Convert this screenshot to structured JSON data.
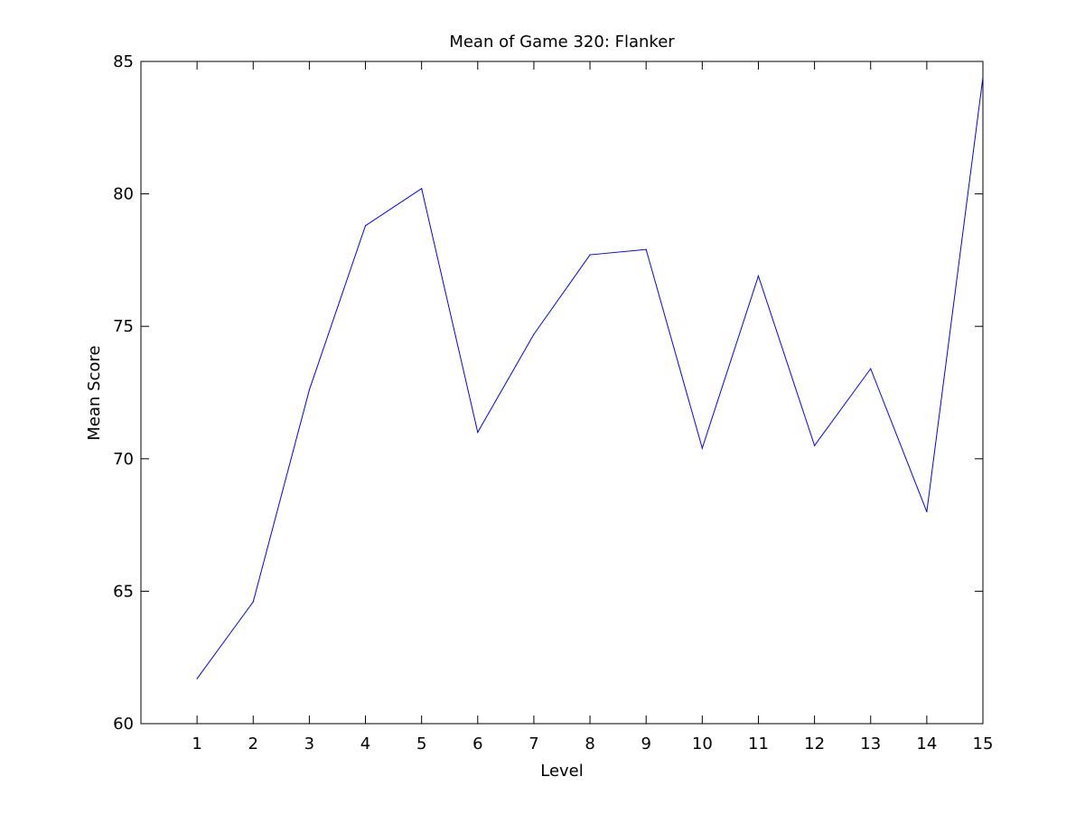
{
  "chart_data": {
    "type": "line",
    "title": "Mean of Game 320: Flanker",
    "xlabel": "Level",
    "ylabel": "Mean Score",
    "xlim": [
      0,
      15
    ],
    "ylim": [
      60,
      85
    ],
    "x_ticks": [
      1,
      2,
      3,
      4,
      5,
      6,
      7,
      8,
      9,
      10,
      11,
      12,
      13,
      14,
      15
    ],
    "y_ticks": [
      60,
      65,
      70,
      75,
      80,
      85
    ],
    "grid": false,
    "legend": "none",
    "series": [
      {
        "color": "#0000ff",
        "x": [
          1,
          2,
          3,
          4,
          5,
          6,
          7,
          8,
          9,
          10,
          11,
          12,
          13,
          14,
          15
        ],
        "y": [
          61.7,
          64.6,
          72.6,
          78.8,
          80.2,
          71.0,
          74.7,
          77.7,
          77.9,
          70.4,
          76.9,
          70.5,
          73.4,
          68.0,
          84.4
        ]
      }
    ]
  }
}
